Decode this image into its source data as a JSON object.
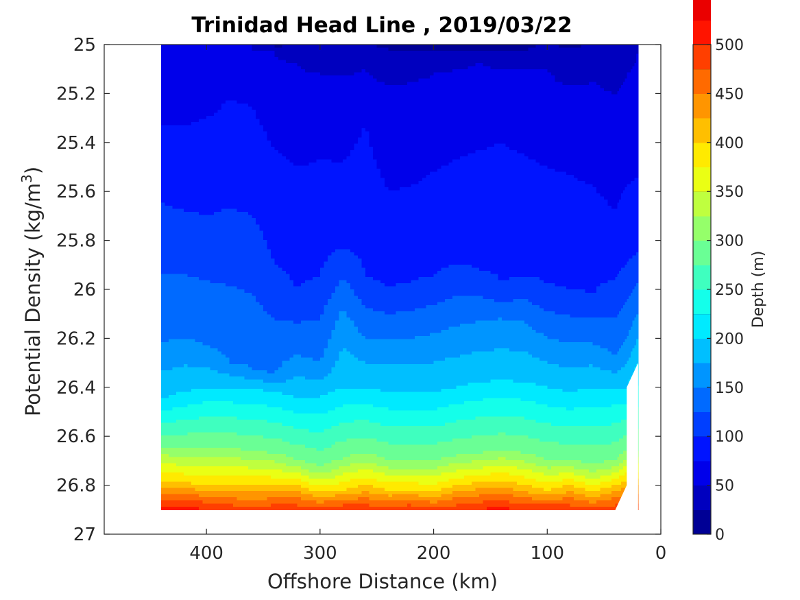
{
  "chart_data": {
    "type": "heatmap",
    "subtype": "filled-contour",
    "title": "Trinidad Head Line , 2019/03/22",
    "xlabel": "Offshore Distance (km)",
    "ylabel": "Potential Density (kg/m",
    "ylabel_sup": "3",
    "ylabel_close": ")",
    "xlim": [
      490,
      0
    ],
    "x_reversed": true,
    "ylim": [
      25,
      27
    ],
    "y_reversed": true,
    "x_ticks": [
      "400",
      "300",
      "200",
      "100",
      "0"
    ],
    "y_ticks": [
      "25",
      "25.2",
      "25.4",
      "25.6",
      "25.8",
      "26",
      "26.2",
      "26.4",
      "26.6",
      "26.8",
      "27"
    ],
    "colorbar": {
      "label": "Depth (m)",
      "ticks": [
        "0",
        "50",
        "100",
        "150",
        "200",
        "250",
        "300",
        "350",
        "400",
        "450",
        "500"
      ],
      "range": [
        0,
        500
      ],
      "level_step": 25,
      "colors": [
        "#000095",
        "#0000bf",
        "#0000ea",
        "#0014ff",
        "#003fff",
        "#006aff",
        "#0095ff",
        "#00bfff",
        "#00eaff",
        "#14ffea",
        "#3fffbf",
        "#6aff95",
        "#95ff6a",
        "#bfff3f",
        "#eaff14",
        "#ffea00",
        "#ffbf00",
        "#ff9500",
        "#ff6a00",
        "#ff3f00",
        "#ff1400",
        "#ea0000",
        "#bf0000"
      ]
    },
    "distance_km": [
      440,
      420,
      400,
      380,
      360,
      340,
      320,
      300,
      280,
      260,
      240,
      220,
      200,
      180,
      160,
      140,
      120,
      100,
      80,
      60,
      40,
      30,
      20
    ],
    "depth_isolines": [
      {
        "depth_m": 25,
        "density": [
          25.0,
          25.0,
          25.0,
          25.0,
          25.0,
          25.02,
          25.0,
          25.0,
          25.0,
          25.0,
          25.02,
          25.03,
          25.02,
          25.03,
          25.02,
          25.02,
          25.03,
          25.0,
          25.02,
          25.0,
          25.0,
          25.0,
          25.0
        ]
      },
      {
        "depth_m": 50,
        "density": [
          25.0,
          25.0,
          25.0,
          25.0,
          25.0,
          25.03,
          25.08,
          25.12,
          25.13,
          25.1,
          25.17,
          25.15,
          25.12,
          25.1,
          25.07,
          25.1,
          25.1,
          25.1,
          25.17,
          25.15,
          25.2,
          25.12,
          25.0
        ]
      },
      {
        "depth_m": 75,
        "density": [
          25.33,
          25.33,
          25.3,
          25.22,
          25.25,
          25.43,
          25.5,
          25.47,
          25.48,
          25.32,
          25.6,
          25.58,
          25.52,
          25.47,
          25.43,
          25.4,
          25.45,
          25.5,
          25.53,
          25.58,
          25.68,
          25.58,
          25.54
        ]
      },
      {
        "depth_m": 100,
        "density": [
          25.65,
          25.68,
          25.7,
          25.67,
          25.7,
          25.9,
          26.0,
          25.95,
          25.83,
          25.95,
          26.0,
          25.97,
          25.95,
          25.9,
          25.92,
          25.98,
          25.95,
          25.98,
          26.0,
          26.02,
          25.96,
          25.9,
          25.85
        ]
      },
      {
        "depth_m": 150,
        "density": [
          26.22,
          26.2,
          26.23,
          26.3,
          26.33,
          26.35,
          26.27,
          26.3,
          26.07,
          26.2,
          26.2,
          26.2,
          26.18,
          26.15,
          26.13,
          26.12,
          26.13,
          26.2,
          26.22,
          26.22,
          26.28,
          26.2,
          26.1
        ]
      },
      {
        "depth_m": 200,
        "density": [
          26.45,
          26.42,
          26.4,
          26.4,
          26.4,
          26.42,
          26.44,
          26.44,
          26.4,
          26.4,
          26.42,
          26.42,
          26.42,
          26.4,
          26.38,
          26.37,
          26.38,
          26.4,
          26.42,
          26.4,
          26.4,
          26.4,
          26.3
        ]
      },
      {
        "depth_m": 300,
        "density": [
          26.64,
          26.65,
          26.64,
          26.65,
          26.66,
          26.67,
          26.7,
          26.73,
          26.69,
          26.67,
          26.7,
          26.7,
          26.7,
          26.68,
          26.67,
          26.66,
          26.67,
          26.7,
          26.7,
          26.72,
          26.7,
          26.66,
          26.66
        ]
      },
      {
        "depth_m": 400,
        "density": [
          26.78,
          26.79,
          26.8,
          26.8,
          26.8,
          26.8,
          26.8,
          26.83,
          26.82,
          26.8,
          26.82,
          26.82,
          26.83,
          26.8,
          26.79,
          26.78,
          26.8,
          26.82,
          26.8,
          26.83,
          26.8,
          26.78,
          26.77
        ]
      },
      {
        "depth_m": 475,
        "density": [
          26.86,
          26.86,
          26.87,
          26.88,
          26.89,
          26.88,
          26.88,
          26.89,
          26.88,
          26.88,
          26.89,
          26.88,
          26.89,
          26.88,
          26.87,
          26.86,
          26.88,
          26.88,
          26.88,
          26.89,
          26.88,
          26.87,
          26.87
        ]
      }
    ],
    "data_extent": {
      "x_min_km": 20,
      "x_max_km": 440,
      "y_max_density": 26.9
    },
    "grid": false,
    "legend": "colorbar-right"
  }
}
